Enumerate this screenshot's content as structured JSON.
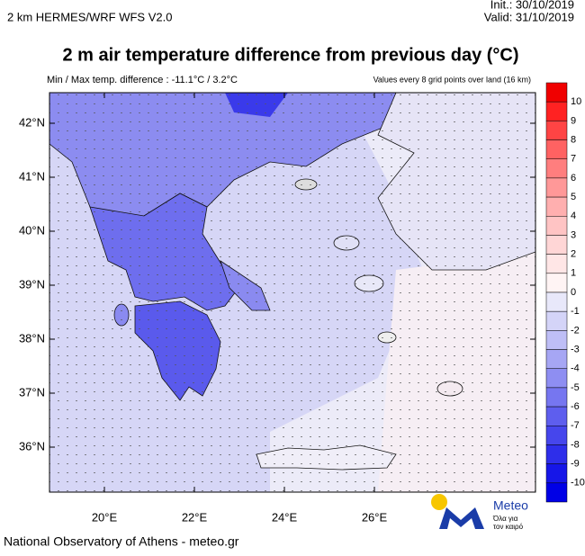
{
  "header": {
    "model": "2 km HERMES/WRF WFS V2.0",
    "init": "Init.: 30/10/2019",
    "valid": "Valid: 31/10/2019",
    "title": "2 m air temperature difference from previous day (°C)",
    "minmax": "Min / Max temp. difference : -11.1°C / 3.2°C",
    "note": "Values every 8 grid points over land (16 km)"
  },
  "map": {
    "lat_labels": [
      "42°N",
      "41°N",
      "40°N",
      "39°N",
      "38°N",
      "37°N",
      "36°N"
    ],
    "lon_labels": [
      "20°E",
      "22°E",
      "24°E",
      "26°E"
    ]
  },
  "colorbar": {
    "labels": [
      10,
      9,
      8,
      7,
      6,
      5,
      4,
      3,
      2,
      1,
      0,
      -1,
      -2,
      -3,
      -4,
      -5,
      -6,
      -7,
      -8,
      -9,
      -10
    ],
    "colors": [
      "#f00000",
      "#ff2222",
      "#ff4444",
      "#ff6262",
      "#ff7e7e",
      "#ff9898",
      "#ffafaf",
      "#ffc4c4",
      "#ffd6d6",
      "#ffe6e6",
      "#fff4f4",
      "#e8e8fa",
      "#d4d4f8",
      "#bebef6",
      "#a6a6f4",
      "#8e8ef2",
      "#7676f0",
      "#5e5eee",
      "#4646ec",
      "#2e2eea",
      "#1616e8",
      "#0000e6"
    ]
  },
  "logo": {
    "name": "Meteo",
    "tagline": [
      "Όλα για",
      "τον καιρό"
    ]
  },
  "footer": "National Observatory of Athens - meteo.gr"
}
